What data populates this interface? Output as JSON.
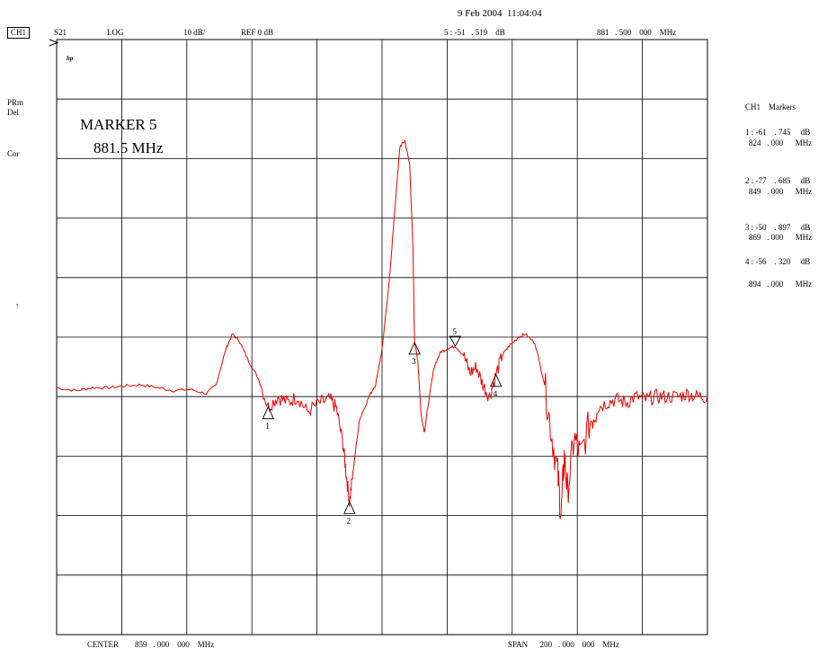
{
  "timestamp": "9 Feb 2004  11:04:04",
  "header": {
    "channel": "CH1",
    "param": "S21",
    "format": "LOG",
    "scale": "10 dB/",
    "ref": "REF 0 dB",
    "active_marker_value": "5 : -51   . 519    dB",
    "active_marker_freq": "881   . 500    000    MHz"
  },
  "left_annotations": {
    "logo": "hp",
    "prm": "PRm",
    "del": "Del",
    "cor": "Cor",
    "arrow": "↑"
  },
  "marker_box": {
    "title": "MARKER 5",
    "freq": "881.5 MHz"
  },
  "footer": {
    "center": "CENTER        859   . 000    000    MHz",
    "span": "SPAN      200   . 000    000    MHz"
  },
  "marker_table": {
    "title": "CH1    Markers",
    "m1_line1": "1 : -61    . 745     dB",
    "m1_line2": "824   . 000      MHz",
    "m2_line1": "2 : -77    . 685     dB",
    "m2_line2": "849   . 000      MHz",
    "m3_line1": "3 : -50    . 897     dB",
    "m3_line2": "869   . 000      MHz",
    "m4_line1": "4 : -56    . 320     dB",
    "m4_line2": "894   . 000      MHz"
  },
  "chart_data": {
    "type": "line",
    "trace_color": "#ee0000",
    "grid": true,
    "xlim": [
      759,
      959
    ],
    "ylim": [
      -100,
      0
    ],
    "y_divisions": 10,
    "x_divisions": 10,
    "series": [
      {
        "points": [
          [
            759,
            -58.5
          ],
          [
            765,
            -59
          ],
          [
            770,
            -58.5
          ],
          [
            775,
            -58.5
          ],
          [
            780,
            -58.2
          ],
          [
            785,
            -58
          ],
          [
            790,
            -58.5
          ],
          [
            795,
            -59
          ],
          [
            800,
            -58.8
          ],
          [
            805,
            -59.5
          ],
          [
            808,
            -58
          ],
          [
            811,
            -52
          ],
          [
            813,
            -49.5
          ],
          [
            815,
            -50.5
          ],
          [
            818,
            -54
          ],
          [
            821,
            -57
          ],
          [
            824,
            -61.7
          ],
          [
            827,
            -60
          ],
          [
            830,
            -61
          ],
          [
            833,
            -60
          ],
          [
            836,
            -62.5
          ],
          [
            840,
            -61
          ],
          [
            843,
            -60.5
          ],
          [
            845,
            -62
          ],
          [
            847,
            -68
          ],
          [
            848,
            -73
          ],
          [
            849,
            -77.7
          ],
          [
            850,
            -73
          ],
          [
            852,
            -64
          ],
          [
            855,
            -60
          ],
          [
            857,
            -58
          ],
          [
            859,
            -52
          ],
          [
            861,
            -42
          ],
          [
            863,
            -28
          ],
          [
            864.5,
            -18
          ],
          [
            866,
            -17
          ],
          [
            867.5,
            -21
          ],
          [
            868.5,
            -35
          ],
          [
            869,
            -50.9
          ],
          [
            870,
            -54
          ],
          [
            871,
            -63
          ],
          [
            872,
            -66
          ],
          [
            873,
            -62
          ],
          [
            875,
            -55
          ],
          [
            877,
            -52.5
          ],
          [
            879,
            -52
          ],
          [
            881.5,
            -51.5
          ],
          [
            884,
            -53
          ],
          [
            886,
            -56
          ],
          [
            888,
            -55
          ],
          [
            890,
            -58
          ],
          [
            892,
            -60
          ],
          [
            894,
            -56.3
          ],
          [
            896,
            -53
          ],
          [
            898,
            -51.5
          ],
          [
            901,
            -50
          ],
          [
            903,
            -49.5
          ],
          [
            906,
            -51
          ],
          [
            909,
            -58
          ],
          [
            911,
            -66
          ],
          [
            913,
            -73
          ],
          [
            914,
            -80
          ],
          [
            915,
            -70
          ],
          [
            916,
            -76
          ],
          [
            918,
            -67
          ],
          [
            920,
            -70
          ],
          [
            923,
            -64
          ],
          [
            925,
            -62
          ],
          [
            928,
            -61
          ],
          [
            931,
            -60.5
          ],
          [
            934,
            -61
          ],
          [
            937,
            -60
          ],
          [
            940,
            -60.5
          ],
          [
            943,
            -60
          ],
          [
            946,
            -60
          ],
          [
            950,
            -60
          ],
          [
            953,
            -59.5
          ],
          [
            956,
            -60
          ],
          [
            959,
            -60
          ]
        ]
      }
    ],
    "markers": [
      {
        "label": "1",
        "x": 824,
        "y": -61.745,
        "dir": "up"
      },
      {
        "label": "2",
        "x": 849,
        "y": -77.685,
        "dir": "up"
      },
      {
        "label": "3",
        "x": 869,
        "y": -50.897,
        "dir": "up"
      },
      {
        "label": "4",
        "x": 894,
        "y": -56.32,
        "dir": "up"
      },
      {
        "label": "5",
        "x": 881.5,
        "y": -51.519,
        "dir": "down"
      }
    ]
  }
}
